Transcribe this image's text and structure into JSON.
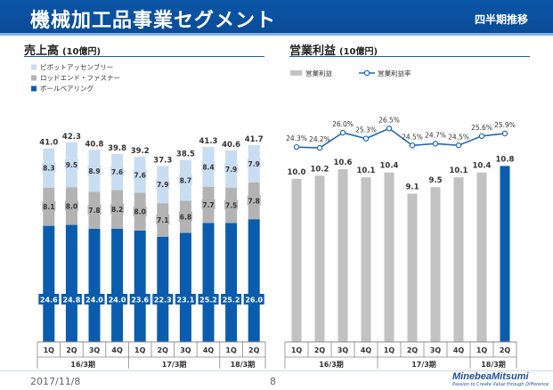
{
  "header": {
    "title": "機械加工品事業セグメント",
    "period_label": "四半期推移"
  },
  "sections": {
    "sales_title": "売上高",
    "sales_unit": "(10億円)",
    "profit_title": "営業利益",
    "profit_unit": "(10億円)"
  },
  "footer": {
    "date": "2017/11/8",
    "page": "8",
    "logo_main": "MinebeaMitsumi",
    "logo_sub": "Passion to Create Value through Difference"
  },
  "colors": {
    "ball_bearing": "#0b5cad",
    "rod_end": "#b3b3b3",
    "pivot": "#c9ddf2",
    "profit_bar": "#c2c2c2",
    "profit_bar_latest": "#0b5cad",
    "margin_line": "#2268b5"
  },
  "chart_data": [
    {
      "type": "bar",
      "stacked": true,
      "title": "売上高",
      "unit": "(10億円)",
      "categories": [
        "1Q",
        "2Q",
        "3Q",
        "4Q",
        "1Q",
        "2Q",
        "3Q",
        "4Q",
        "1Q",
        "2Q"
      ],
      "groups": [
        {
          "label": "16/3期",
          "span": 4
        },
        {
          "label": "17/3期",
          "span": 4
        },
        {
          "label": "18/3期",
          "span": 2
        }
      ],
      "series": [
        {
          "name": "ボールベアリング",
          "values": [
            24.6,
            24.8,
            24.0,
            24.0,
            23.6,
            22.3,
            23.1,
            25.2,
            25.2,
            26.0
          ]
        },
        {
          "name": "ロッドエンド・ファスナー",
          "values": [
            8.1,
            8.0,
            7.8,
            8.2,
            8.0,
            7.1,
            6.8,
            7.7,
            7.5,
            7.8
          ]
        },
        {
          "name": "ピボットアッセンブリー",
          "values": [
            8.3,
            9.5,
            8.9,
            7.6,
            7.6,
            7.9,
            8.7,
            8.4,
            7.9,
            7.9
          ]
        }
      ],
      "totals": [
        41.0,
        42.3,
        40.8,
        39.8,
        39.2,
        37.3,
        38.5,
        41.3,
        40.6,
        41.7
      ],
      "ylim": [
        0,
        50
      ]
    },
    {
      "type": "bar",
      "title": "営業利益",
      "unit": "(10億円)",
      "categories": [
        "1Q",
        "2Q",
        "3Q",
        "4Q",
        "1Q",
        "2Q",
        "3Q",
        "4Q",
        "1Q",
        "2Q"
      ],
      "groups": [
        {
          "label": "16/3期",
          "span": 4
        },
        {
          "label": "17/3期",
          "span": 4
        },
        {
          "label": "18/3期",
          "span": 2
        }
      ],
      "series": [
        {
          "name": "営業利益",
          "type": "bar",
          "values": [
            10.0,
            10.2,
            10.6,
            10.1,
            10.4,
            9.1,
            9.5,
            10.1,
            10.4,
            10.8
          ]
        },
        {
          "name": "営業利益率",
          "type": "line",
          "values": [
            24.3,
            24.2,
            26.0,
            25.3,
            26.5,
            24.5,
            24.7,
            24.5,
            25.6,
            25.9
          ],
          "labels": [
            "24.3%",
            "24.2%",
            "26.0%",
            "25.3%",
            "26.5%",
            "24.5%",
            "24.7%",
            "24.5%",
            "25.6%",
            "25.9%"
          ]
        }
      ],
      "ylim": [
        0,
        15
      ]
    }
  ]
}
